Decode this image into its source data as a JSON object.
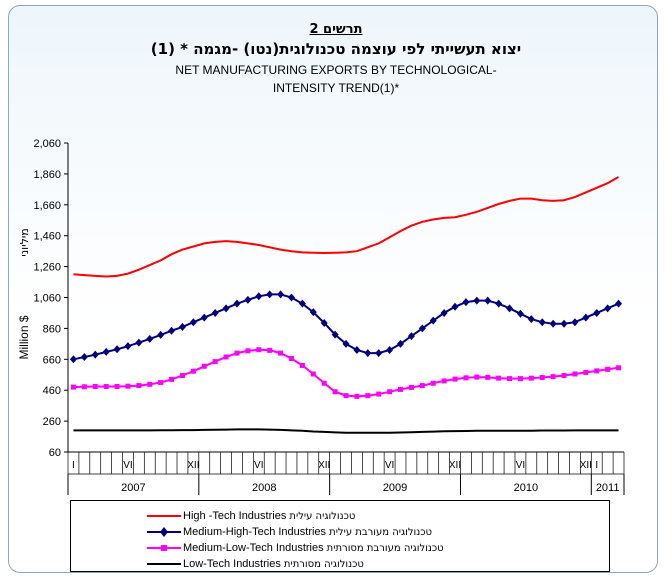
{
  "title": {
    "number": "תרשים 2",
    "hebrew": "יצוא תעשייתי לפי עוצמה טכנולוגית(נטו) -מגמה * (1)",
    "english_line1": "NET MANUFACTURING EXPORTS BY TECHNOLOGICAL-",
    "english_line2": "INTENSITY TREND(1)*"
  },
  "chart_data": {
    "type": "line",
    "ylabel_en": "Million $",
    "ylabel_he": "מיליוני",
    "ylim": [
      60,
      2060
    ],
    "yticks": [
      "60",
      "260",
      "460",
      "660",
      "860",
      "1,060",
      "1,260",
      "1,460",
      "1,660",
      "1,860",
      "2,060"
    ],
    "month_ticks": [
      "I",
      "VI",
      "XII",
      "VI",
      "XII",
      "VI",
      "XII",
      "VI",
      "XII",
      "I"
    ],
    "years": [
      "2007",
      "2008",
      "2009",
      "2010",
      "2011"
    ],
    "x": [
      "2007-01",
      "2007-02",
      "2007-03",
      "2007-04",
      "2007-05",
      "2007-06",
      "2007-07",
      "2007-08",
      "2007-09",
      "2007-10",
      "2007-11",
      "2007-12",
      "2008-01",
      "2008-02",
      "2008-03",
      "2008-04",
      "2008-05",
      "2008-06",
      "2008-07",
      "2008-08",
      "2008-09",
      "2008-10",
      "2008-11",
      "2008-12",
      "2009-01",
      "2009-02",
      "2009-03",
      "2009-04",
      "2009-05",
      "2009-06",
      "2009-07",
      "2009-08",
      "2009-09",
      "2009-10",
      "2009-11",
      "2009-12",
      "2010-01",
      "2010-02",
      "2010-03",
      "2010-04",
      "2010-05",
      "2010-06",
      "2010-07",
      "2010-08",
      "2010-09",
      "2010-10",
      "2010-11",
      "2010-12",
      "2011-01",
      "2011-02",
      "2011-03"
    ],
    "grid": false,
    "legend_position": "bottom",
    "series": [
      {
        "name": "High -Tech Industries",
        "name_he": "טכנולוגיה עילית",
        "color": "#ff0000",
        "marker": "none",
        "values": [
          1210,
          1205,
          1200,
          1196,
          1200,
          1215,
          1240,
          1270,
          1300,
          1340,
          1370,
          1390,
          1410,
          1420,
          1425,
          1420,
          1410,
          1400,
          1385,
          1370,
          1360,
          1352,
          1350,
          1348,
          1350,
          1352,
          1360,
          1385,
          1410,
          1450,
          1490,
          1525,
          1550,
          1565,
          1575,
          1580,
          1595,
          1615,
          1640,
          1665,
          1685,
          1700,
          1700,
          1690,
          1685,
          1690,
          1710,
          1740,
          1770,
          1800,
          1840
        ]
      },
      {
        "name": "Medium-High-Tech Industries",
        "name_he": "טכנולוגיה מעורבת עילית",
        "color": "#000080",
        "marker": "diamond",
        "values": [
          660,
          675,
          690,
          708,
          725,
          745,
          768,
          792,
          818,
          845,
          870,
          900,
          930,
          960,
          990,
          1020,
          1045,
          1068,
          1080,
          1080,
          1060,
          1020,
          965,
          895,
          820,
          760,
          720,
          700,
          700,
          720,
          760,
          810,
          860,
          910,
          960,
          1000,
          1030,
          1040,
          1040,
          1020,
          990,
          955,
          920,
          900,
          890,
          890,
          900,
          930,
          960,
          990,
          1020
        ]
      },
      {
        "name": "Medium-Low-Tech Industries",
        "name_he": "טכנולוגיה מעורבת מסורתית",
        "color": "#ff00ff",
        "marker": "square",
        "values": [
          480,
          482,
          484,
          484,
          484,
          486,
          490,
          498,
          510,
          530,
          555,
          583,
          615,
          645,
          675,
          700,
          715,
          722,
          718,
          700,
          665,
          620,
          565,
          505,
          450,
          425,
          420,
          425,
          435,
          450,
          465,
          478,
          490,
          505,
          520,
          532,
          540,
          545,
          543,
          538,
          535,
          535,
          538,
          542,
          548,
          555,
          565,
          575,
          585,
          595,
          605
        ]
      },
      {
        "name": "Low-Tech Industries",
        "name_he": "טכנולוגיה מסורתית",
        "color": "#000000",
        "marker": "none",
        "values": [
          200,
          200,
          200,
          200,
          200,
          200,
          200,
          200,
          201,
          201,
          202,
          202,
          203,
          204,
          205,
          206,
          206,
          206,
          205,
          203,
          200,
          197,
          193,
          190,
          187,
          185,
          184,
          184,
          184,
          185,
          186,
          188,
          190,
          192,
          194,
          195,
          196,
          197,
          198,
          198,
          198,
          198,
          198,
          199,
          199,
          199,
          200,
          200,
          200,
          200,
          200
        ]
      }
    ]
  }
}
